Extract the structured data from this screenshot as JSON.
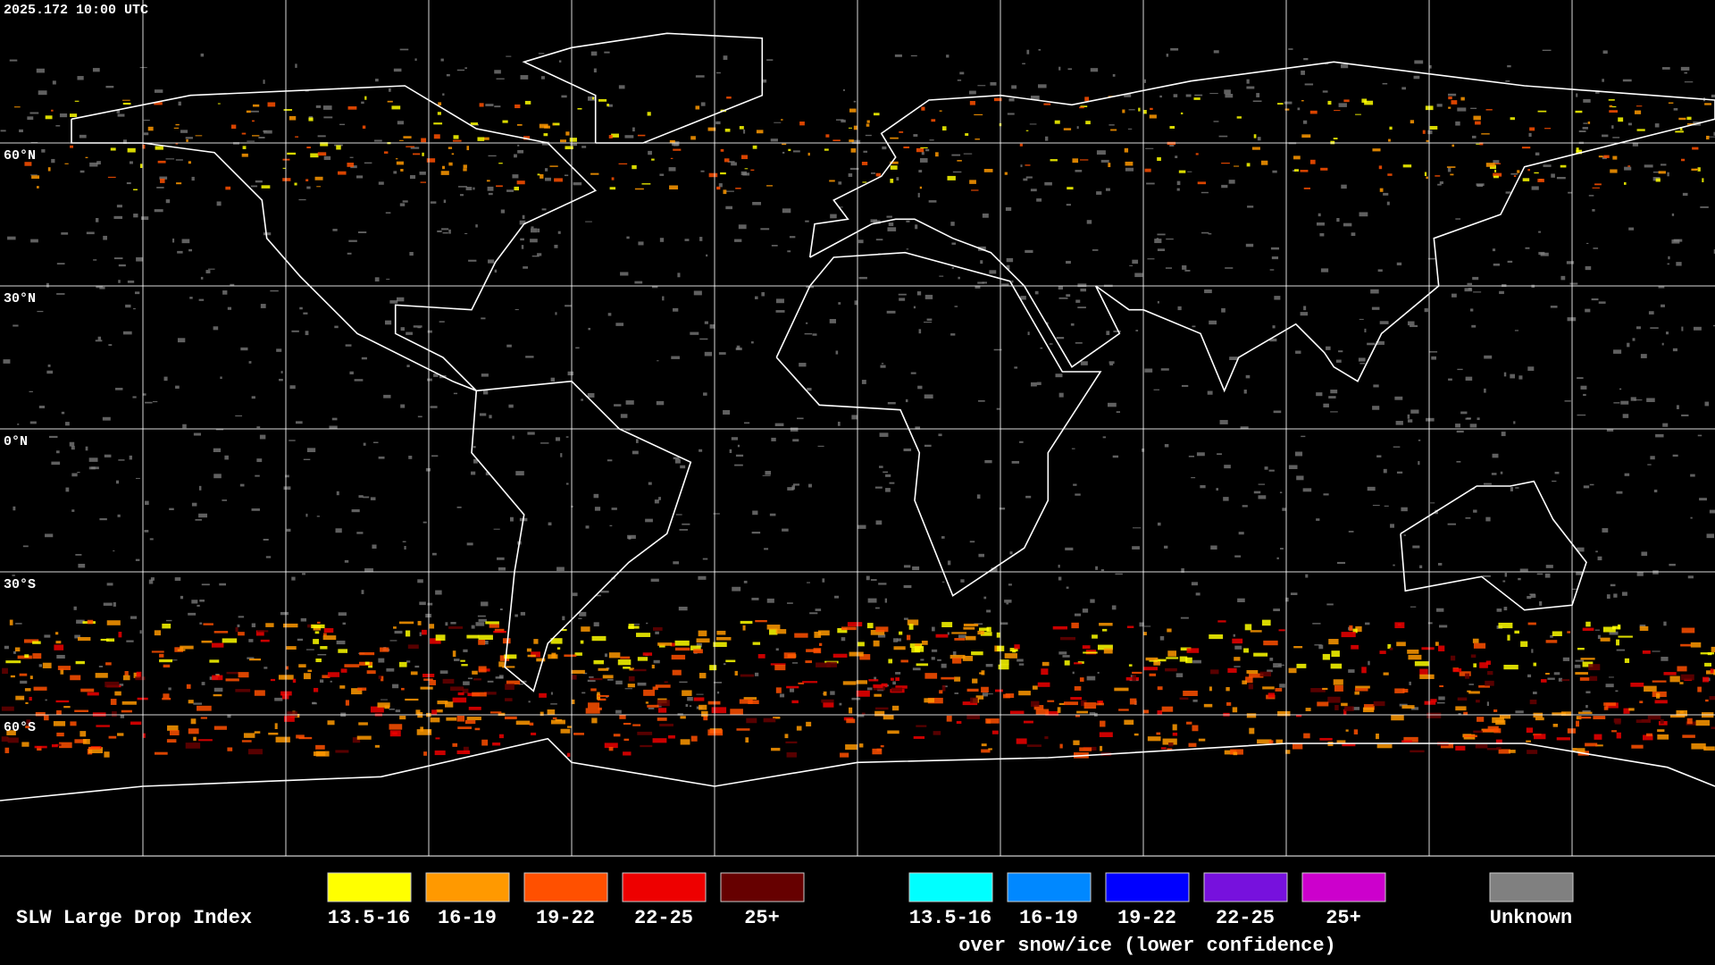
{
  "timestamp": "2025.172 10:00 UTC",
  "lat_labels": [
    "60°N",
    "30°N",
    "0°N",
    "30°S",
    "60°S"
  ],
  "legend": {
    "title": "SLW Large Drop Index",
    "groups": [
      {
        "items": [
          {
            "label": "13.5-16",
            "color": "#ffff00"
          },
          {
            "label": "16-19",
            "color": "#ff9900"
          },
          {
            "label": "19-22",
            "color": "#ff5000"
          },
          {
            "label": "22-25",
            "color": "#ee0000"
          },
          {
            "label": "25+",
            "color": "#660000"
          }
        ]
      },
      {
        "items": [
          {
            "label": "13.5-16",
            "color": "#00ffff"
          },
          {
            "label": "16-19",
            "color": "#0088ff"
          },
          {
            "label": "19-22",
            "color": "#0000ff"
          },
          {
            "label": "22-25",
            "color": "#7711dd"
          },
          {
            "label": "25+",
            "color": "#cc00cc"
          }
        ],
        "caption": "over snow/ice (lower confidence)"
      },
      {
        "items": [
          {
            "label": "Unknown",
            "color": "#808080"
          }
        ]
      }
    ]
  }
}
